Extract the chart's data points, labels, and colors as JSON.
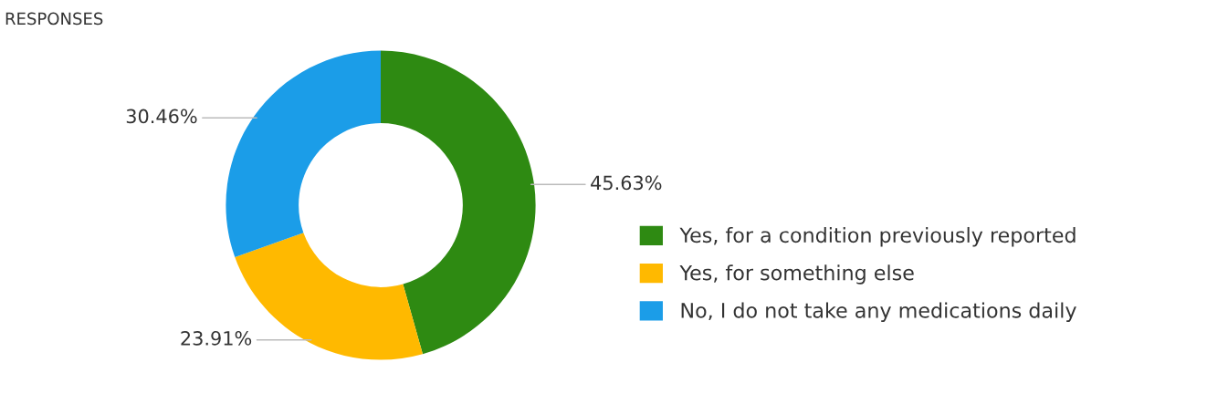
{
  "chart_data": {
    "type": "donut",
    "title": "RESPONSES",
    "categories": [
      "Yes, for a condition previously reported",
      "Yes, for something else",
      "No, I do not take any medications daily"
    ],
    "values": [
      45.63,
      23.91,
      30.46
    ],
    "colors": [
      "#2e8a12",
      "#ffb900",
      "#1b9de8"
    ],
    "value_labels": [
      "45.63%",
      "23.91%",
      "30.46%"
    ],
    "legend": "right"
  }
}
